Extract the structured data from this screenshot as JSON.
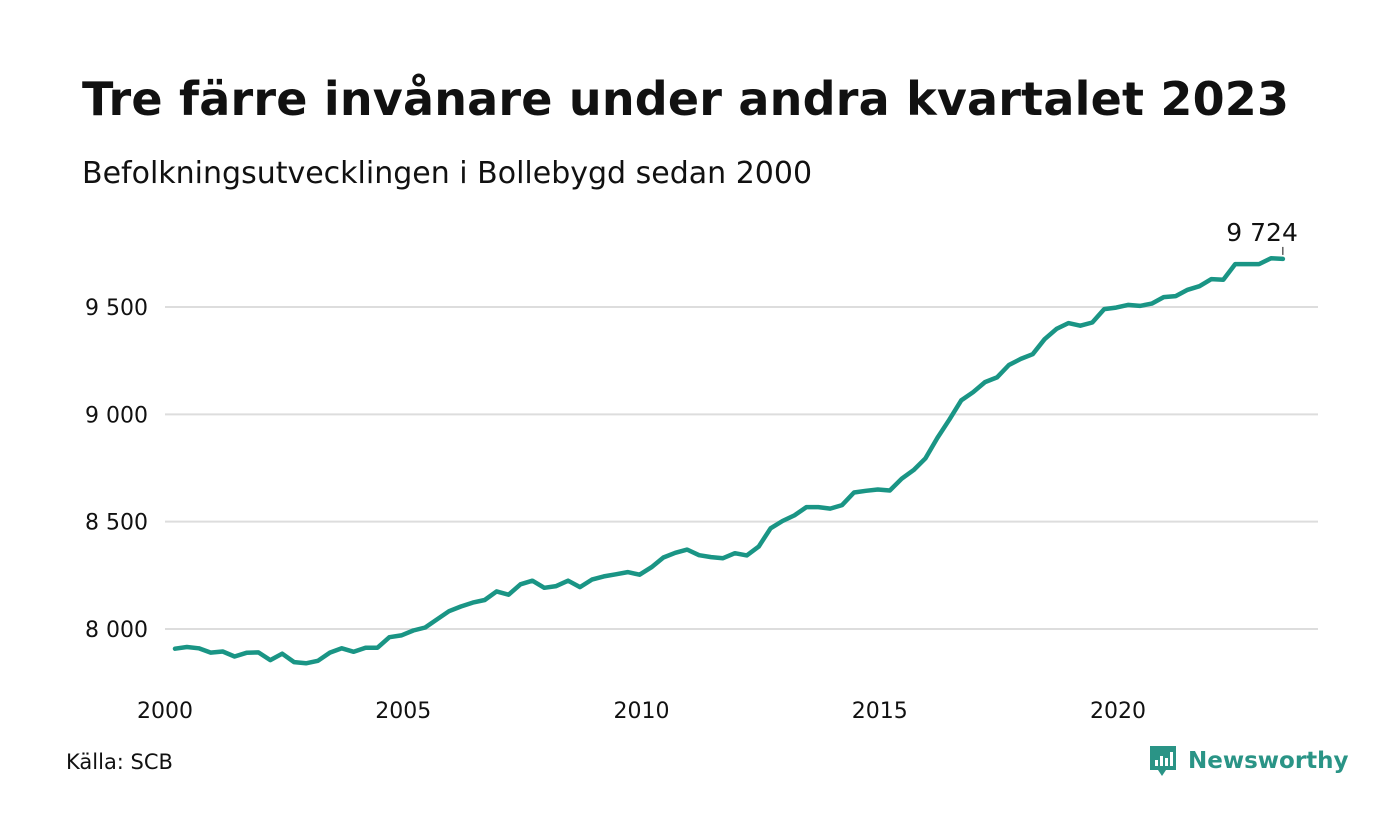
{
  "header": {
    "title": "Tre färre invånare under andra kvartalet 2023",
    "subtitle": "Befolkningsutvecklingen i Bollebygd sedan 2000"
  },
  "footer": {
    "source": "Källa: SCB",
    "brand": "Newsworthy",
    "brand_icon": "newsworthy-logo-icon"
  },
  "colors": {
    "line": "#1a9585",
    "grid": "#dddddd",
    "text": "#111111",
    "brand": "#2a9486"
  },
  "chart_data": {
    "type": "line",
    "title": "Tre färre invånare under andra kvartalet 2023",
    "subtitle": "Befolkningsutvecklingen i Bollebygd sedan 2000",
    "xlabel": "",
    "ylabel": "",
    "x_ticks": [
      "2000",
      "2005",
      "2010",
      "2015",
      "2020"
    ],
    "y_ticks": [
      "8 000",
      "8 500",
      "9 000",
      "9 500"
    ],
    "ylim": [
      7770,
      9850
    ],
    "xlim": [
      2000.0,
      2024.0
    ],
    "grid": true,
    "end_label": "9 724",
    "series": [
      {
        "x": [
          2000.0,
          2000.25,
          2000.5,
          2000.75,
          2001.0,
          2001.25,
          2001.5,
          2001.75,
          2002.0,
          2002.25,
          2002.5,
          2002.75,
          2003.0,
          2003.25,
          2003.5,
          2003.75,
          2004.0,
          2004.25,
          2004.5,
          2004.75,
          2005.0,
          2005.25,
          2005.5,
          2005.75,
          2006.0,
          2006.25,
          2006.5,
          2006.75,
          2007.0,
          2007.25,
          2007.5,
          2007.75,
          2008.0,
          2008.25,
          2008.5,
          2008.75,
          2009.0,
          2009.25,
          2009.5,
          2009.75,
          2010.0,
          2010.25,
          2010.5,
          2010.75,
          2011.0,
          2011.25,
          2011.5,
          2011.75,
          2012.0,
          2012.25,
          2012.5,
          2012.75,
          2013.0,
          2013.25,
          2013.5,
          2013.75,
          2014.0,
          2014.25,
          2014.5,
          2014.75,
          2015.0,
          2015.25,
          2015.5,
          2015.75,
          2016.0,
          2016.25,
          2016.5,
          2016.75,
          2017.0,
          2017.25,
          2017.5,
          2017.75,
          2018.0,
          2018.25,
          2018.5,
          2018.75,
          2019.0,
          2019.25,
          2019.5,
          2019.75,
          2020.0,
          2020.25,
          2020.5,
          2020.75,
          2021.0,
          2021.25,
          2021.5,
          2021.75,
          2022.0,
          2022.25,
          2022.5,
          2022.75,
          2023.0,
          2023.25
        ],
        "values": [
          7908,
          7916,
          7910,
          7890,
          7895,
          7872,
          7889,
          7891,
          7855,
          7885,
          7846,
          7840,
          7852,
          7890,
          7910,
          7894,
          7913,
          7913,
          7962,
          7970,
          7993,
          8007,
          8045,
          8083,
          8105,
          8123,
          8135,
          8175,
          8160,
          8208,
          8225,
          8192,
          8200,
          8225,
          8195,
          8230,
          8245,
          8255,
          8265,
          8253,
          8288,
          8333,
          8355,
          8370,
          8344,
          8335,
          8330,
          8353,
          8343,
          8384,
          8469,
          8503,
          8529,
          8568,
          8568,
          8561,
          8577,
          8636,
          8644,
          8650,
          8645,
          8700,
          8740,
          8795,
          8890,
          8975,
          9065,
          9103,
          9150,
          9172,
          9230,
          9258,
          9280,
          9350,
          9398,
          9425,
          9413,
          9428,
          9490,
          9497,
          9510,
          9505,
          9516,
          9546,
          9551,
          9580,
          9597,
          9630,
          9627,
          9700,
          9700,
          9700,
          9727,
          9724
        ]
      }
    ]
  }
}
